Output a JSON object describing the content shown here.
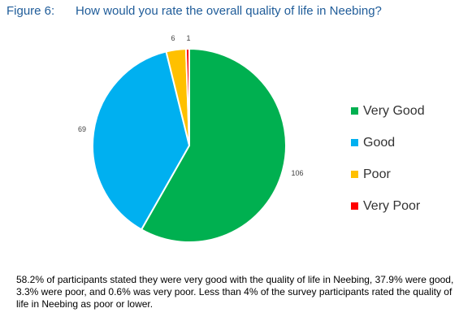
{
  "figure": {
    "number_label": "Figure 6:",
    "title": "How would you rate the overall quality of life in Neebing?"
  },
  "chart_data": {
    "type": "pie",
    "categories": [
      "Very Good",
      "Good",
      "Poor",
      "Very Poor"
    ],
    "values": [
      106,
      69,
      6,
      1
    ],
    "data_labels": [
      "106",
      "69",
      "6",
      "1"
    ],
    "colors": [
      "#00b050",
      "#00b0f0",
      "#ffc000",
      "#ff0000"
    ],
    "legend_position": "right",
    "start_angle_deg": 0,
    "direction": "clockwise"
  },
  "caption": "58.2% of participants stated they were very good with the quality of life in Neebing, 37.9% were good, 3.3% were poor, and 0.6% was very poor. Less than 4% of the survey participants rated the quality of life in Neebing as poor or lower."
}
